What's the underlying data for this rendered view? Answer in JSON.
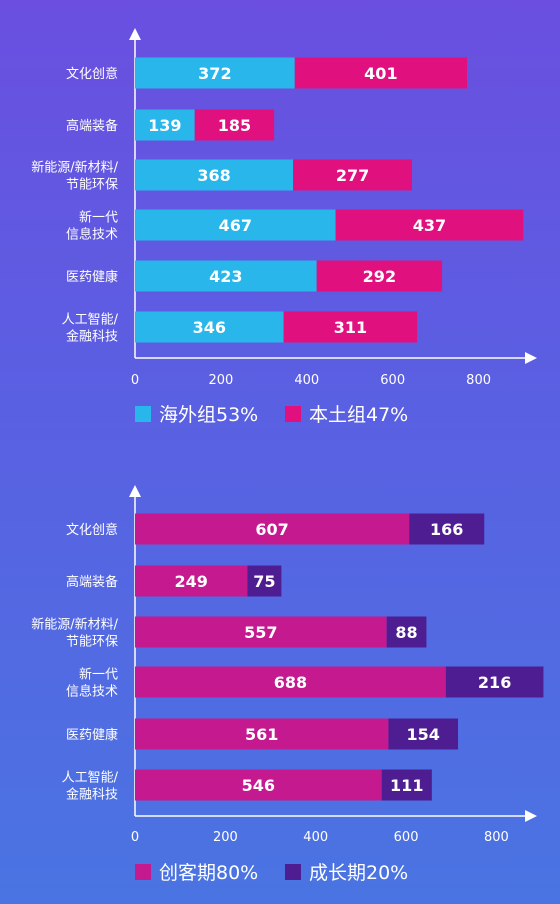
{
  "chart_data": [
    {
      "type": "bar",
      "orientation": "horizontal",
      "stacked": true,
      "categories": [
        "文化创意",
        "高端装备",
        "新能源/新材料/\n节能环保",
        "新一代\n信息技术",
        "医药健康",
        "人工智能/\n金融科技"
      ],
      "series": [
        {
          "name": "海外组53%",
          "values": [
            372,
            139,
            368,
            467,
            423,
            346
          ],
          "color": "#29b6ea"
        },
        {
          "name": "本土组47%",
          "values": [
            401,
            185,
            277,
            437,
            292,
            311
          ],
          "color": "#e0117f"
        }
      ],
      "x_ticks": [
        "0",
        "200",
        "400",
        "600",
        "800"
      ],
      "xlim": [
        0,
        900
      ],
      "legend_position": "bottom-left",
      "grid": false
    },
    {
      "type": "bar",
      "orientation": "horizontal",
      "stacked": true,
      "categories": [
        "文化创意",
        "高端装备",
        "新能源/新材料/\n节能环保",
        "新一代\n信息技术",
        "医药健康",
        "人工智能/\n金融科技"
      ],
      "series": [
        {
          "name": "创客期80%",
          "values": [
            607,
            249,
            557,
            688,
            561,
            546
          ],
          "color": "#c5198f"
        },
        {
          "name": "成长期20%",
          "values": [
            166,
            75,
            88,
            216,
            154,
            111
          ],
          "color": "#4d1d91"
        }
      ],
      "x_ticks": [
        "0",
        "200",
        "400",
        "600",
        "800"
      ],
      "xlim": [
        0,
        900
      ],
      "legend_position": "bottom-left",
      "grid": false
    }
  ]
}
